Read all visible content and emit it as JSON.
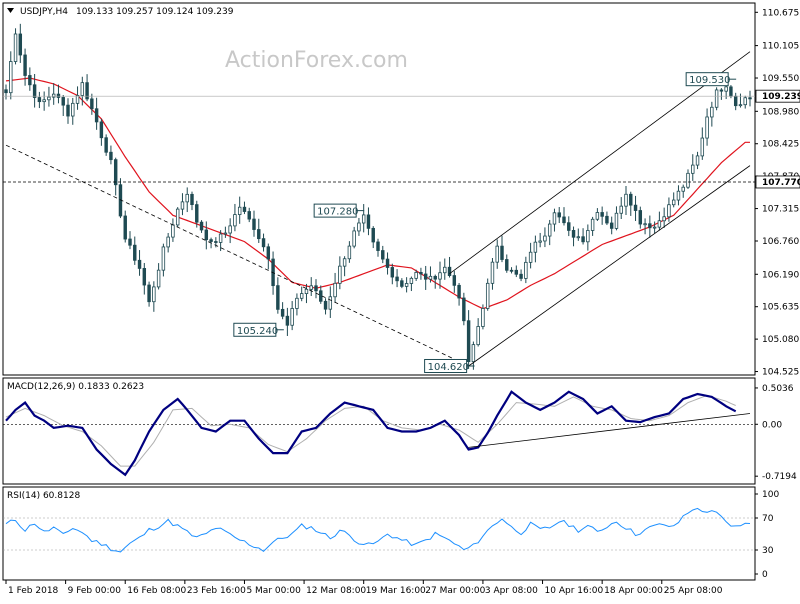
{
  "symbol_header": {
    "symbol": "USDJPY,H4",
    "ohlc": "109.133 109.257 109.124 109.239"
  },
  "watermark": "ActionForex.com",
  "chart_data": [
    {
      "type": "candlestick",
      "title": "USDJPY,H4",
      "ylim": [
        104.5,
        110.8
      ],
      "y_ticks": [
        "110.675",
        "110.105",
        "109.550",
        "108.980",
        "108.425",
        "107.870",
        "107.315",
        "106.760",
        "106.190",
        "105.635",
        "105.080",
        "104.525"
      ],
      "current_price": 109.239,
      "current_price_label": "109.239",
      "hline": 107.77,
      "hline_label": "107.770",
      "price_labels": [
        {
          "text": "109.530",
          "value": 109.53
        },
        {
          "text": "107.280",
          "value": 107.28
        },
        {
          "text": "105.240",
          "value": 105.24
        },
        {
          "text": "104.620",
          "value": 104.62
        }
      ],
      "path": [
        [
          0,
          109.3
        ],
        [
          2,
          110.35
        ],
        [
          4,
          109.6
        ],
        [
          7,
          109.1
        ],
        [
          10,
          109.3
        ],
        [
          13,
          108.95
        ],
        [
          16,
          109.45
        ],
        [
          19,
          108.8
        ],
        [
          22,
          108.1
        ],
        [
          25,
          106.8
        ],
        [
          28,
          106.3
        ],
        [
          30,
          105.7
        ],
        [
          33,
          106.6
        ],
        [
          36,
          107.3
        ],
        [
          38,
          107.6
        ],
        [
          40,
          107.1
        ],
        [
          43,
          106.7
        ],
        [
          46,
          106.9
        ],
        [
          49,
          107.35
        ],
        [
          52,
          107.0
        ],
        [
          55,
          106.5
        ],
        [
          57,
          105.6
        ],
        [
          59,
          105.3
        ],
        [
          61,
          105.8
        ],
        [
          64,
          106.0
        ],
        [
          67,
          105.6
        ],
        [
          70,
          106.3
        ],
        [
          73,
          106.9
        ],
        [
          75,
          107.15
        ],
        [
          77,
          106.7
        ],
        [
          80,
          106.3
        ],
        [
          83,
          106.0
        ],
        [
          86,
          106.2
        ],
        [
          89,
          106.1
        ],
        [
          92,
          106.3
        ],
        [
          94,
          106.05
        ],
        [
          96,
          105.4
        ],
        [
          97,
          104.65
        ],
        [
          99,
          105.3
        ],
        [
          101,
          106.0
        ],
        [
          103,
          106.7
        ],
        [
          105,
          106.3
        ],
        [
          108,
          106.1
        ],
        [
          110,
          106.6
        ],
        [
          113,
          106.9
        ],
        [
          115,
          107.3
        ],
        [
          118,
          106.9
        ],
        [
          121,
          106.8
        ],
        [
          124,
          107.3
        ],
        [
          127,
          107.0
        ],
        [
          130,
          107.6
        ],
        [
          133,
          107.1
        ],
        [
          136,
          107.0
        ],
        [
          139,
          107.35
        ],
        [
          142,
          107.7
        ],
        [
          145,
          108.2
        ],
        [
          147,
          108.9
        ],
        [
          149,
          109.3
        ],
        [
          151,
          109.45
        ],
        [
          153,
          109.1
        ],
        [
          155,
          109.2
        ]
      ],
      "ma_path": [
        [
          0,
          109.5
        ],
        [
          5,
          109.55
        ],
        [
          10,
          109.45
        ],
        [
          15,
          109.25
        ],
        [
          20,
          108.85
        ],
        [
          25,
          108.2
        ],
        [
          30,
          107.6
        ],
        [
          35,
          107.2
        ],
        [
          40,
          107.05
        ],
        [
          45,
          106.9
        ],
        [
          50,
          106.75
        ],
        [
          55,
          106.45
        ],
        [
          60,
          106.05
        ],
        [
          65,
          105.95
        ],
        [
          70,
          106.05
        ],
        [
          75,
          106.2
        ],
        [
          80,
          106.35
        ],
        [
          85,
          106.3
        ],
        [
          90,
          106.05
        ],
        [
          95,
          105.8
        ],
        [
          100,
          105.6
        ],
        [
          105,
          105.75
        ],
        [
          110,
          106.0
        ],
        [
          115,
          106.2
        ],
        [
          120,
          106.45
        ],
        [
          125,
          106.7
        ],
        [
          130,
          106.85
        ],
        [
          135,
          107.0
        ],
        [
          140,
          107.2
        ],
        [
          145,
          107.65
        ],
        [
          150,
          108.1
        ],
        [
          155,
          108.45
        ]
      ],
      "trend_lines": [
        {
          "style": "dashed",
          "from": [
            0,
            108.4
          ],
          "to": [
            97,
            104.62
          ]
        },
        {
          "style": "solid",
          "from": [
            97,
            104.62
          ],
          "to": [
            156,
            108.05
          ]
        },
        {
          "style": "solid",
          "from": [
            93,
            106.2
          ],
          "to": [
            156,
            110.0
          ]
        }
      ]
    },
    {
      "type": "line",
      "title": "MACD(12,26,9) 0.1833 0.2623",
      "ylim": [
        -0.8,
        0.6
      ],
      "y_ticks": [
        {
          "label": "0.5036",
          "value": 0.5036
        },
        {
          "label": "0.00",
          "value": 0.0
        },
        {
          "label": "-0.7194",
          "value": -0.7194
        }
      ],
      "zero_line": 0.0,
      "series": [
        {
          "name": "MACD",
          "values": [
            [
              0,
              0.05
            ],
            [
              2,
              0.2
            ],
            [
              4,
              0.3
            ],
            [
              6,
              0.12
            ],
            [
              8,
              0.05
            ],
            [
              10,
              -0.05
            ],
            [
              13,
              -0.02
            ],
            [
              16,
              -0.05
            ],
            [
              19,
              -0.35
            ],
            [
              22,
              -0.55
            ],
            [
              25,
              -0.7
            ],
            [
              27,
              -0.5
            ],
            [
              30,
              -0.1
            ],
            [
              33,
              0.2
            ],
            [
              36,
              0.35
            ],
            [
              38,
              0.2
            ],
            [
              41,
              -0.05
            ],
            [
              44,
              -0.1
            ],
            [
              47,
              0.05
            ],
            [
              50,
              0.05
            ],
            [
              53,
              -0.2
            ],
            [
              56,
              -0.4
            ],
            [
              59,
              -0.4
            ],
            [
              62,
              -0.1
            ],
            [
              65,
              -0.05
            ],
            [
              68,
              0.15
            ],
            [
              71,
              0.3
            ],
            [
              74,
              0.25
            ],
            [
              77,
              0.2
            ],
            [
              80,
              -0.05
            ],
            [
              83,
              -0.1
            ],
            [
              86,
              -0.1
            ],
            [
              89,
              -0.05
            ],
            [
              92,
              0.05
            ],
            [
              95,
              -0.15
            ],
            [
              97,
              -0.35
            ],
            [
              99,
              -0.32
            ],
            [
              101,
              -0.12
            ],
            [
              103,
              0.12
            ],
            [
              106,
              0.45
            ],
            [
              109,
              0.3
            ],
            [
              112,
              0.2
            ],
            [
              115,
              0.3
            ],
            [
              118,
              0.45
            ],
            [
              121,
              0.35
            ],
            [
              124,
              0.15
            ],
            [
              127,
              0.25
            ],
            [
              130,
              0.05
            ],
            [
              133,
              0.03
            ],
            [
              136,
              0.1
            ],
            [
              139,
              0.15
            ],
            [
              142,
              0.35
            ],
            [
              145,
              0.42
            ],
            [
              148,
              0.38
            ],
            [
              151,
              0.25
            ],
            [
              153,
              0.18
            ]
          ]
        },
        {
          "name": "Signal",
          "values": [
            [
              0,
              0.1
            ],
            [
              4,
              0.22
            ],
            [
              8,
              0.12
            ],
            [
              12,
              -0.02
            ],
            [
              16,
              -0.1
            ],
            [
              20,
              -0.3
            ],
            [
              24,
              -0.58
            ],
            [
              27,
              -0.58
            ],
            [
              31,
              -0.25
            ],
            [
              35,
              0.2
            ],
            [
              39,
              0.22
            ],
            [
              43,
              -0.02
            ],
            [
              47,
              0.0
            ],
            [
              51,
              -0.05
            ],
            [
              55,
              -0.28
            ],
            [
              59,
              -0.38
            ],
            [
              63,
              -0.2
            ],
            [
              67,
              0.05
            ],
            [
              71,
              0.22
            ],
            [
              75,
              0.25
            ],
            [
              79,
              0.05
            ],
            [
              83,
              -0.05
            ],
            [
              87,
              -0.08
            ],
            [
              91,
              0.0
            ],
            [
              95,
              -0.08
            ],
            [
              99,
              -0.25
            ],
            [
              103,
              0.0
            ],
            [
              107,
              0.3
            ],
            [
              111,
              0.28
            ],
            [
              115,
              0.25
            ],
            [
              119,
              0.38
            ],
            [
              123,
              0.25
            ],
            [
              127,
              0.2
            ],
            [
              131,
              0.08
            ],
            [
              135,
              0.05
            ],
            [
              139,
              0.12
            ],
            [
              143,
              0.3
            ],
            [
              147,
              0.4
            ],
            [
              151,
              0.32
            ],
            [
              153,
              0.26
            ]
          ]
        }
      ],
      "trend_line": {
        "from": [
          97,
          -0.32
        ],
        "to": [
          156,
          0.15
        ]
      }
    },
    {
      "type": "line",
      "title": "RSI(14) 60.8128",
      "ylim": [
        0,
        100
      ],
      "y_ticks": [
        {
          "label": "100",
          "value": 100
        },
        {
          "label": "70",
          "value": 70
        },
        {
          "label": "30",
          "value": 30
        },
        {
          "label": "0",
          "value": 0
        }
      ],
      "level_lines": [
        70,
        30
      ],
      "series": [
        {
          "name": "RSI",
          "values": [
            [
              0,
              62
            ],
            [
              2,
              68
            ],
            [
              4,
              55
            ],
            [
              6,
              64
            ],
            [
              8,
              52
            ],
            [
              10,
              58
            ],
            [
              12,
              48
            ],
            [
              14,
              58
            ],
            [
              16,
              52
            ],
            [
              18,
              42
            ],
            [
              20,
              38
            ],
            [
              22,
              32
            ],
            [
              24,
              28
            ],
            [
              26,
              38
            ],
            [
              28,
              45
            ],
            [
              30,
              55
            ],
            [
              32,
              60
            ],
            [
              34,
              66
            ],
            [
              36,
              60
            ],
            [
              38,
              52
            ],
            [
              40,
              45
            ],
            [
              42,
              50
            ],
            [
              44,
              58
            ],
            [
              46,
              52
            ],
            [
              48,
              45
            ],
            [
              50,
              40
            ],
            [
              52,
              35
            ],
            [
              54,
              30
            ],
            [
              56,
              40
            ],
            [
              58,
              45
            ],
            [
              60,
              50
            ],
            [
              62,
              60
            ],
            [
              64,
              58
            ],
            [
              66,
              52
            ],
            [
              68,
              45
            ],
            [
              70,
              55
            ],
            [
              72,
              48
            ],
            [
              74,
              40
            ],
            [
              76,
              36
            ],
            [
              78,
              40
            ],
            [
              80,
              50
            ],
            [
              82,
              45
            ],
            [
              84,
              40
            ],
            [
              86,
              36
            ],
            [
              88,
              42
            ],
            [
              90,
              50
            ],
            [
              92,
              45
            ],
            [
              94,
              38
            ],
            [
              96,
              30
            ],
            [
              98,
              35
            ],
            [
              100,
              48
            ],
            [
              102,
              60
            ],
            [
              104,
              70
            ],
            [
              106,
              58
            ],
            [
              108,
              52
            ],
            [
              110,
              62
            ],
            [
              112,
              55
            ],
            [
              114,
              58
            ],
            [
              116,
              66
            ],
            [
              118,
              62
            ],
            [
              120,
              55
            ],
            [
              122,
              60
            ],
            [
              124,
              52
            ],
            [
              126,
              60
            ],
            [
              128,
              66
            ],
            [
              130,
              58
            ],
            [
              132,
              50
            ],
            [
              134,
              55
            ],
            [
              136,
              60
            ],
            [
              138,
              62
            ],
            [
              140,
              58
            ],
            [
              142,
              72
            ],
            [
              144,
              82
            ],
            [
              146,
              78
            ],
            [
              148,
              80
            ],
            [
              150,
              70
            ],
            [
              152,
              58
            ],
            [
              154,
              62
            ]
          ]
        }
      ]
    }
  ],
  "x_axis": {
    "labels": [
      "1 Feb 2018",
      "9 Feb 00:00",
      "16 Feb 08:00",
      "23 Feb 16:00",
      "5 Mar 00:00",
      "12 Mar 08:00",
      "19 Mar 16:00",
      "27 Mar 00:00",
      "3 Apr 08:00",
      "10 Apr 16:00",
      "18 Apr 00:00",
      "25 Apr 08:00"
    ],
    "label_bar_index": [
      0,
      12.5,
      25,
      37.5,
      50,
      62.5,
      75,
      87.5,
      100,
      112.5,
      125,
      137.5
    ],
    "bar_count": 157
  }
}
